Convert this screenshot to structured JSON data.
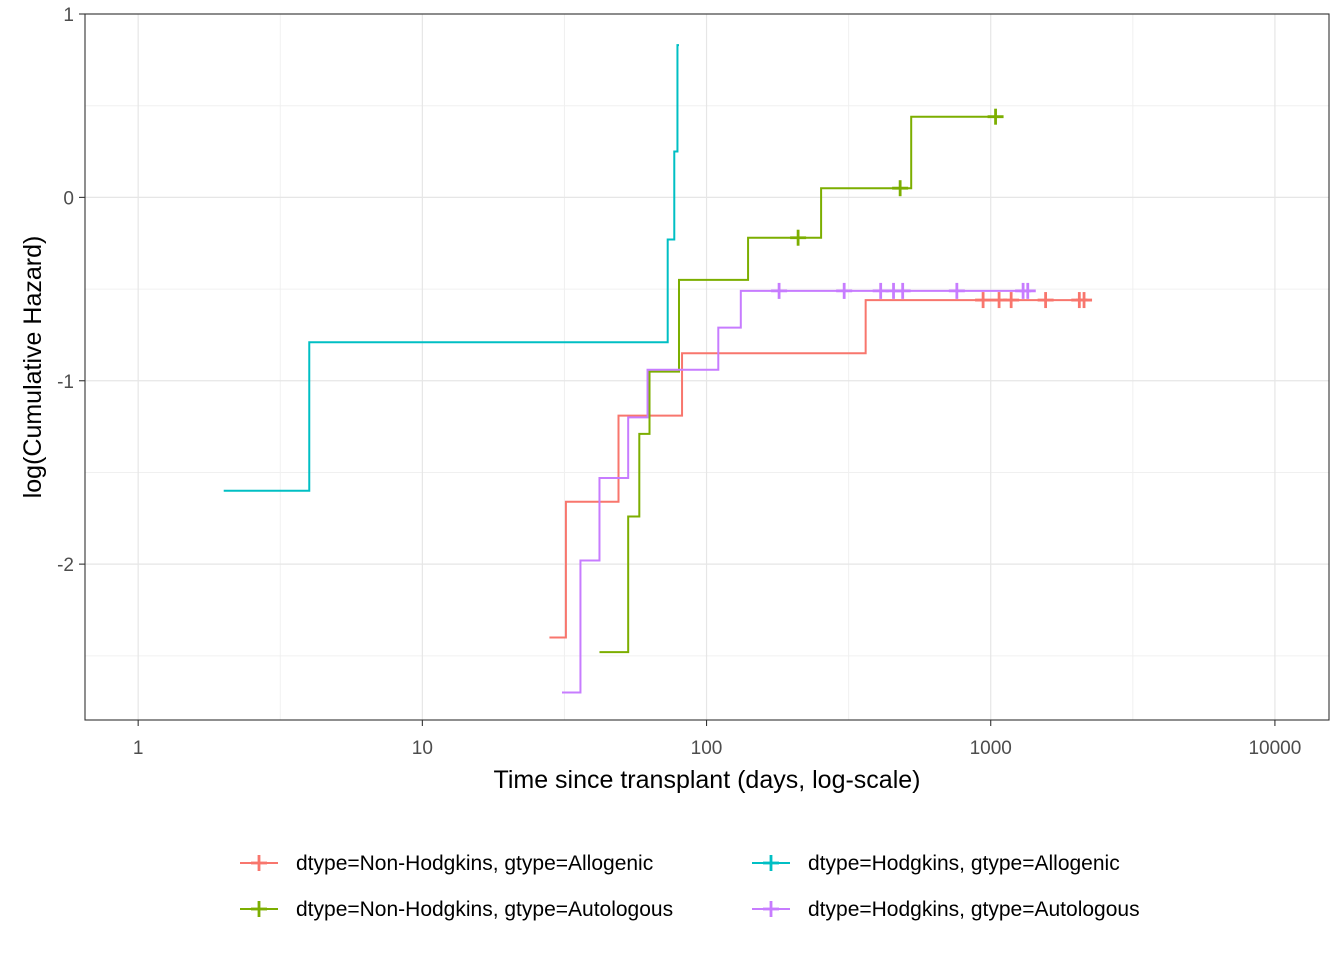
{
  "chart_data": {
    "type": "line",
    "step": true,
    "xlabel": "Time since transplant (days, log-scale)",
    "ylabel": "log(Cumulative Hazard)",
    "x_scale": "log10",
    "xlim": [
      0.65,
      15500
    ],
    "ylim": [
      -2.85,
      1.0
    ],
    "x_ticks": [
      1,
      10,
      100,
      1000,
      10000
    ],
    "x_tick_labels": [
      "1",
      "10",
      "100",
      "1000",
      "10000"
    ],
    "y_ticks": [
      -2,
      -1,
      0,
      1
    ],
    "y_tick_labels": [
      "-2",
      "-1",
      "0",
      "1"
    ],
    "grid": true,
    "legend_position": "bottom",
    "series": [
      {
        "name": "dtype=Non-Hodgkins, gtype=Allogenic",
        "color": "#F8766D",
        "x": [
          28,
          32,
          49,
          82,
          363,
          2130
        ],
        "y": [
          -2.4,
          -1.66,
          -1.19,
          -0.85,
          -0.56,
          -0.56
        ],
        "censor_x": [
          940,
          1070,
          1180,
          1560,
          2050,
          2130
        ],
        "censor_y": -0.56
      },
      {
        "name": "dtype=Non-Hodgkins, gtype=Autologous",
        "color": "#7CAE00",
        "x": [
          42,
          53,
          58,
          63,
          80,
          140,
          253,
          525,
          1040
        ],
        "y": [
          -2.48,
          -1.74,
          -1.29,
          -0.95,
          -0.45,
          -0.22,
          0.05,
          0.44,
          0.44
        ],
        "censor_x": [
          210,
          480,
          1040
        ],
        "censor_y": [
          -0.22,
          0.05,
          0.44
        ]
      },
      {
        "name": "dtype=Hodgkins, gtype=Allogenic",
        "color": "#00BFC4",
        "x": [
          2,
          4,
          73,
          77,
          79,
          80
        ],
        "y": [
          -1.6,
          -0.79,
          -0.23,
          0.25,
          0.83,
          0.83
        ],
        "censor_x": [],
        "censor_y": []
      },
      {
        "name": "dtype=Hodgkins, gtype=Autologous",
        "color": "#C77CFF",
        "x": [
          31,
          36,
          42,
          53,
          62,
          110,
          132,
          1380
        ],
        "y": [
          -2.7,
          -1.98,
          -1.53,
          -1.2,
          -0.94,
          -0.71,
          -0.51,
          -0.51
        ],
        "censor_x": [
          180,
          305,
          410,
          455,
          490,
          760,
          1300,
          1350
        ],
        "censor_y": -0.51
      }
    ]
  }
}
